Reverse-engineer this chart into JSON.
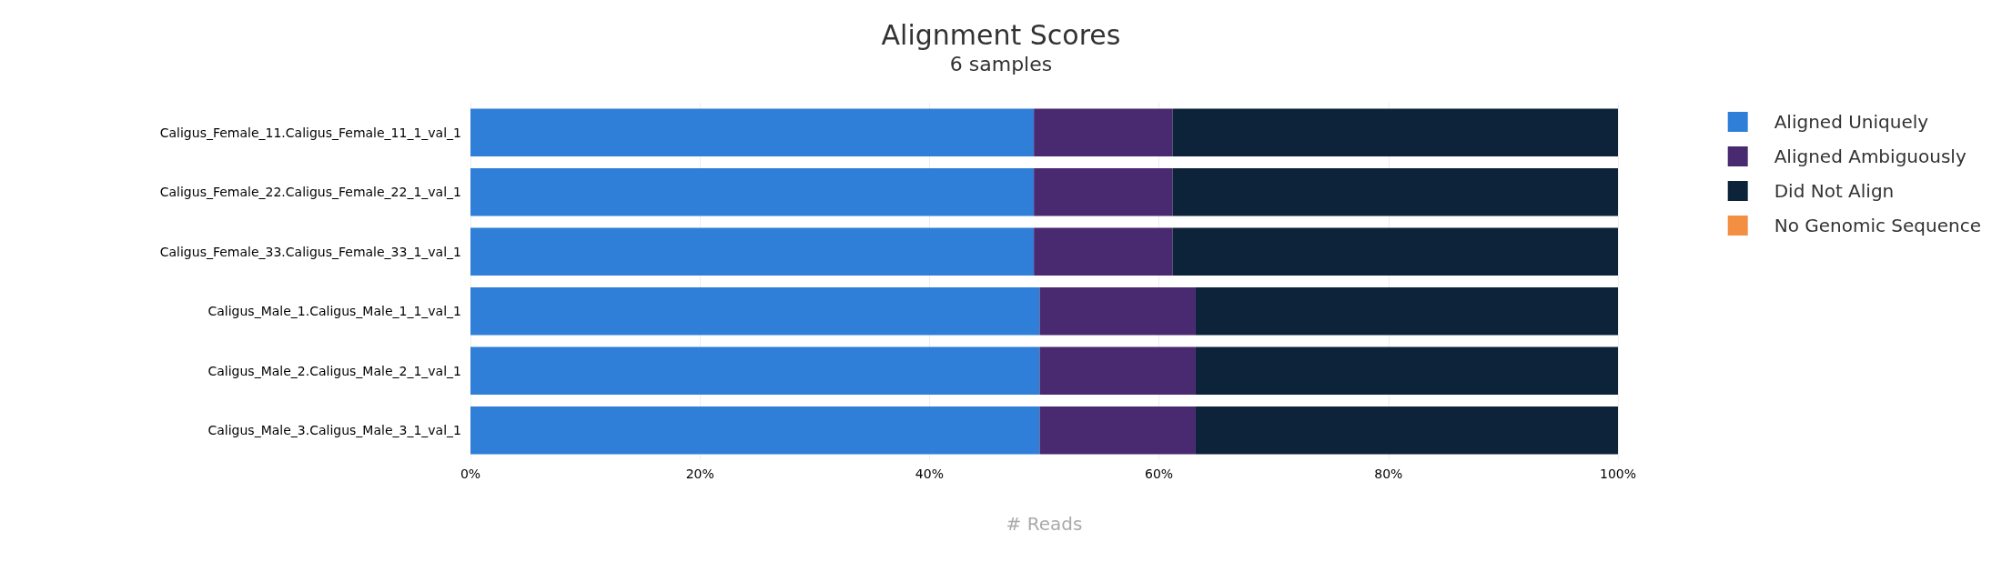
{
  "chart_data": {
    "type": "bar",
    "orientation": "horizontal",
    "stacked": true,
    "title": "Alignment Scores",
    "subtitle": "6 samples",
    "xlabel": "# Reads",
    "categories": [
      "Caligus_Female_11.Caligus_Female_11_1_val_1",
      "Caligus_Female_22.Caligus_Female_22_1_val_1",
      "Caligus_Female_33.Caligus_Female_33_1_val_1",
      "Caligus_Male_1.Caligus_Male_1_1_val_1",
      "Caligus_Male_2.Caligus_Male_2_1_val_1",
      "Caligus_Male_3.Caligus_Male_3_1_val_1"
    ],
    "series": [
      {
        "name": "Aligned Uniquely",
        "color": "#2f7ed8",
        "values": [
          49.1,
          49.1,
          49.1,
          49.6,
          49.6,
          49.6
        ]
      },
      {
        "name": "Aligned Ambiguously",
        "color": "#492970",
        "values": [
          12.1,
          12.1,
          12.1,
          13.6,
          13.6,
          13.6
        ]
      },
      {
        "name": "Did Not Align",
        "color": "#0d233a",
        "values": [
          38.8,
          38.8,
          38.8,
          36.8,
          36.8,
          36.8
        ]
      },
      {
        "name": "No Genomic Sequence",
        "color": "#f28f43",
        "values": [
          0,
          0,
          0,
          0,
          0,
          0
        ]
      }
    ],
    "xlim": [
      0,
      100
    ],
    "xticks": [
      {
        "value": 0,
        "label": "0%"
      },
      {
        "value": 20,
        "label": "20%"
      },
      {
        "value": 40,
        "label": "40%"
      },
      {
        "value": 60,
        "label": "60%"
      },
      {
        "value": 80,
        "label": "80%"
      },
      {
        "value": 100,
        "label": "100%"
      }
    ],
    "grid": "x",
    "legend": "right"
  }
}
